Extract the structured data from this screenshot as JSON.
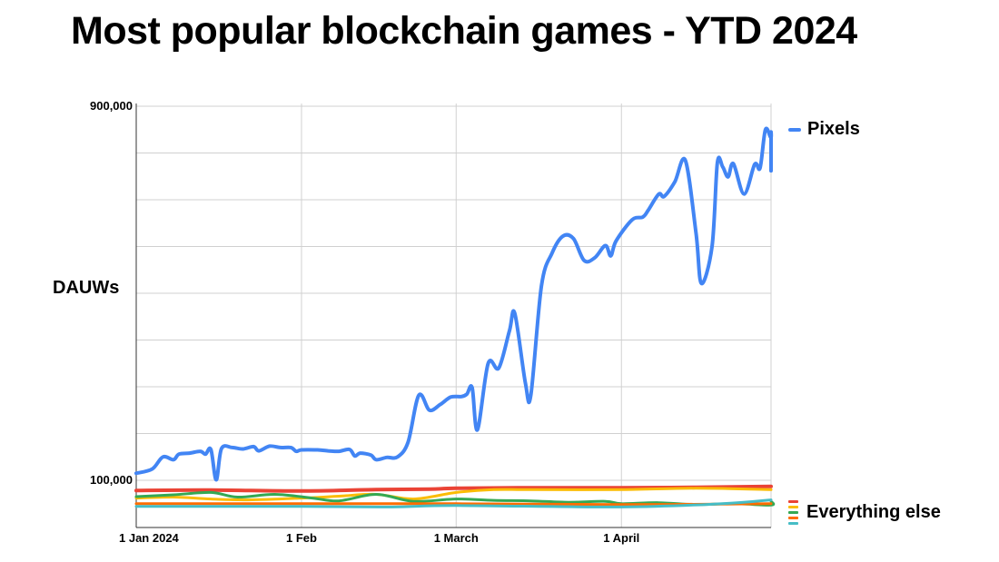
{
  "chart_data": {
    "type": "line",
    "title": "Most popular blockchain games - YTD 2024",
    "ylabel": "DAUWs",
    "xlabel": "",
    "x_start": "2024-01-01",
    "x_end": "2024-04-30",
    "x_ticks": [
      {
        "date": "2024-01-01",
        "label": "1 Jan 2024"
      },
      {
        "date": "2024-02-01",
        "label": "1 Feb"
      },
      {
        "date": "2024-03-01",
        "label": "1 March"
      },
      {
        "date": "2024-04-01",
        "label": "1 April"
      }
    ],
    "y_ticks": [
      {
        "value": 900000,
        "label": "900,000"
      },
      {
        "value": 100000,
        "label": "100,000"
      }
    ],
    "ylim": [
      20000,
      900000
    ],
    "grid": true,
    "legend": [
      {
        "label": "Pixels",
        "colors": [
          "#4285f4"
        ],
        "position": "right-top"
      },
      {
        "label": "Everything else",
        "colors": [
          "#ea4335",
          "#fbbc04",
          "#34a853",
          "#ff6d01",
          "#46bdc6"
        ],
        "position": "right-bottom"
      }
    ],
    "series": [
      {
        "color": "#4285f4",
        "width": 4,
        "points": [
          [
            "2024-01-01",
            115000
          ],
          [
            "2024-01-04",
            124000
          ],
          [
            "2024-01-06",
            150000
          ],
          [
            "2024-01-08",
            144000
          ],
          [
            "2024-01-09",
            156000
          ],
          [
            "2024-01-11",
            158000
          ],
          [
            "2024-01-13",
            162000
          ],
          [
            "2024-01-14",
            156000
          ],
          [
            "2024-01-15",
            166000
          ],
          [
            "2024-01-16",
            101000
          ],
          [
            "2024-01-17",
            168000
          ],
          [
            "2024-01-19",
            170000
          ],
          [
            "2024-01-21",
            167000
          ],
          [
            "2024-01-23",
            172000
          ],
          [
            "2024-01-24",
            163000
          ],
          [
            "2024-01-26",
            173000
          ],
          [
            "2024-01-28",
            170000
          ],
          [
            "2024-01-30",
            170000
          ],
          [
            "2024-01-31",
            162000
          ],
          [
            "2024-02-01",
            165000
          ],
          [
            "2024-02-04",
            165000
          ],
          [
            "2024-02-06",
            163000
          ],
          [
            "2024-02-08",
            162000
          ],
          [
            "2024-02-10",
            166000
          ],
          [
            "2024-02-11",
            152000
          ],
          [
            "2024-02-12",
            158000
          ],
          [
            "2024-02-14",
            154000
          ],
          [
            "2024-02-15",
            144000
          ],
          [
            "2024-02-17",
            149000
          ],
          [
            "2024-02-19",
            150000
          ],
          [
            "2024-02-21",
            182000
          ],
          [
            "2024-02-23",
            282000
          ],
          [
            "2024-02-25",
            250000
          ],
          [
            "2024-02-27",
            262000
          ],
          [
            "2024-02-29",
            278000
          ],
          [
            "2024-03-02",
            279000
          ],
          [
            "2024-03-03",
            284000
          ],
          [
            "2024-03-04",
            298000
          ],
          [
            "2024-03-05",
            208000
          ],
          [
            "2024-03-07",
            350000
          ],
          [
            "2024-03-09",
            340000
          ],
          [
            "2024-03-11",
            420000
          ],
          [
            "2024-03-12",
            457000
          ],
          [
            "2024-03-14",
            307000
          ],
          [
            "2024-03-15",
            282000
          ],
          [
            "2024-03-17",
            516000
          ],
          [
            "2024-03-19",
            586000
          ],
          [
            "2024-03-21",
            622000
          ],
          [
            "2024-03-23",
            617000
          ],
          [
            "2024-03-25",
            570000
          ],
          [
            "2024-03-27",
            576000
          ],
          [
            "2024-03-29",
            602000
          ],
          [
            "2024-03-30",
            580000
          ],
          [
            "2024-03-31",
            612000
          ],
          [
            "2024-04-03",
            657000
          ],
          [
            "2024-04-05",
            663000
          ],
          [
            "2024-04-06",
            677000
          ],
          [
            "2024-04-08",
            712000
          ],
          [
            "2024-04-09",
            707000
          ],
          [
            "2024-04-11",
            738000
          ],
          [
            "2024-04-13",
            784000
          ],
          [
            "2024-04-15",
            627000
          ],
          [
            "2024-04-16",
            521000
          ],
          [
            "2024-04-18",
            601000
          ],
          [
            "2024-04-19",
            779000
          ],
          [
            "2024-04-20",
            770000
          ],
          [
            "2024-04-21",
            749000
          ],
          [
            "2024-04-22",
            777000
          ],
          [
            "2024-04-24",
            712000
          ],
          [
            "2024-04-26",
            776000
          ],
          [
            "2024-04-27",
            768000
          ],
          [
            "2024-04-28",
            850000
          ],
          [
            "2024-04-29",
            833000
          ],
          [
            "2024-04-30",
            845000
          ],
          [
            "2024-05-01",
            824000
          ],
          [
            "2024-05-02",
            843000
          ],
          [
            "2024-05-03",
            812000
          ],
          [
            "2024-05-04",
            762000
          ],
          [
            "2024-05-05",
            825000
          ],
          [
            "2024-05-06",
            804000
          ],
          [
            "2024-05-07",
            833000
          ]
        ]
      },
      {
        "color": "#ea4335",
        "width": 4,
        "points": [
          [
            "2024-01-01",
            78000
          ],
          [
            "2024-01-15",
            79000
          ],
          [
            "2024-02-01",
            77000
          ],
          [
            "2024-02-15",
            80000
          ],
          [
            "2024-02-25",
            81000
          ],
          [
            "2024-03-01",
            83000
          ],
          [
            "2024-03-15",
            84000
          ],
          [
            "2024-04-01",
            84000
          ],
          [
            "2024-04-15",
            85000
          ],
          [
            "2024-05-07",
            87000
          ]
        ]
      },
      {
        "color": "#fbbc04",
        "width": 3,
        "points": [
          [
            "2024-01-01",
            62000
          ],
          [
            "2024-01-08",
            64000
          ],
          [
            "2024-01-15",
            60000
          ],
          [
            "2024-01-22",
            58000
          ],
          [
            "2024-02-01",
            62000
          ],
          [
            "2024-02-08",
            66000
          ],
          [
            "2024-02-15",
            70000
          ],
          [
            "2024-02-22",
            60000
          ],
          [
            "2024-03-01",
            74000
          ],
          [
            "2024-03-08",
            80000
          ],
          [
            "2024-03-15",
            80000
          ],
          [
            "2024-04-01",
            80000
          ],
          [
            "2024-04-15",
            83000
          ],
          [
            "2024-05-07",
            80000
          ]
        ]
      },
      {
        "color": "#34a853",
        "width": 3,
        "points": [
          [
            "2024-01-01",
            65000
          ],
          [
            "2024-01-08",
            69000
          ],
          [
            "2024-01-15",
            74000
          ],
          [
            "2024-01-20",
            64000
          ],
          [
            "2024-01-27",
            70000
          ],
          [
            "2024-02-03",
            62000
          ],
          [
            "2024-02-08",
            56000
          ],
          [
            "2024-02-15",
            70000
          ],
          [
            "2024-02-22",
            55000
          ],
          [
            "2024-03-01",
            60000
          ],
          [
            "2024-03-08",
            57000
          ],
          [
            "2024-03-15",
            56000
          ],
          [
            "2024-03-22",
            53000
          ],
          [
            "2024-03-29",
            55000
          ],
          [
            "2024-04-01",
            50000
          ],
          [
            "2024-04-08",
            52000
          ],
          [
            "2024-04-15",
            48000
          ],
          [
            "2024-04-22",
            50000
          ],
          [
            "2024-04-29",
            47000
          ],
          [
            "2024-05-07",
            55000
          ]
        ]
      },
      {
        "color": "#ff6d01",
        "width": 3,
        "points": [
          [
            "2024-01-01",
            50000
          ],
          [
            "2024-02-01",
            50000
          ],
          [
            "2024-03-01",
            50000
          ],
          [
            "2024-04-01",
            48000
          ],
          [
            "2024-05-07",
            50000
          ]
        ]
      },
      {
        "color": "#46bdc6",
        "width": 3,
        "points": [
          [
            "2024-01-01",
            44000
          ],
          [
            "2024-02-01",
            44000
          ],
          [
            "2024-02-18",
            43000
          ],
          [
            "2024-03-01",
            46000
          ],
          [
            "2024-04-01",
            43000
          ],
          [
            "2024-04-20",
            50000
          ],
          [
            "2024-05-07",
            58000
          ]
        ]
      }
    ]
  }
}
